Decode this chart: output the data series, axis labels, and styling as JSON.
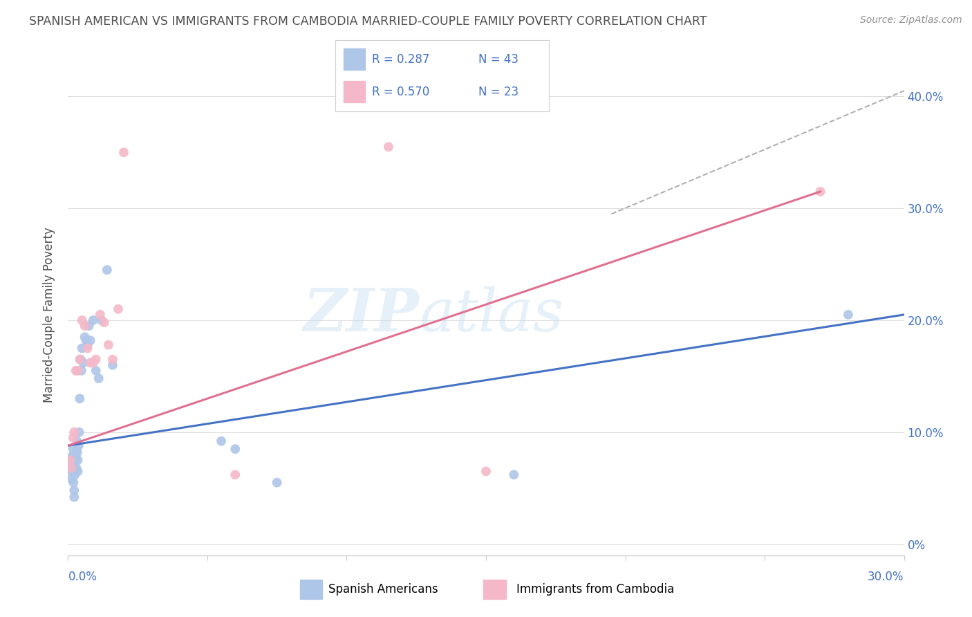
{
  "title": "SPANISH AMERICAN VS IMMIGRANTS FROM CAMBODIA MARRIED-COUPLE FAMILY POVERTY CORRELATION CHART",
  "source": "Source: ZipAtlas.com",
  "ylabel": "Married-Couple Family Poverty",
  "watermark": "ZIPatlas",
  "blue_color": "#aec6e8",
  "pink_color": "#f4b8c8",
  "blue_line_color": "#4472c4",
  "pink_line_color": "#e07090",
  "dashed_line_color": "#b0b0b0",
  "background_color": "#ffffff",
  "grid_color": "#e0e0e0",
  "title_color": "#505050",
  "source_color": "#909090",
  "xmin": 0.0,
  "xmax": 0.3,
  "ymin": -0.01,
  "ymax": 0.42,
  "ytick_vals": [
    0.0,
    0.1,
    0.2,
    0.3,
    0.4
  ],
  "ytick_labels": [
    "0%",
    "10.0%",
    "20.0%",
    "30.0%",
    "40.0%"
  ],
  "blue_line_x": [
    0.0,
    0.3
  ],
  "blue_line_y": [
    0.088,
    0.205
  ],
  "pink_line_x": [
    0.0,
    0.27
  ],
  "pink_line_y": [
    0.088,
    0.315
  ],
  "dashed_line_x": [
    0.195,
    0.3
  ],
  "dashed_line_y": [
    0.295,
    0.405
  ],
  "spanish_x": [
    0.0008,
    0.001,
    0.0012,
    0.0013,
    0.0015,
    0.0016,
    0.0018,
    0.0018,
    0.002,
    0.0022,
    0.0022,
    0.0025,
    0.0025,
    0.0028,
    0.003,
    0.003,
    0.0032,
    0.0033,
    0.0035,
    0.0035,
    0.0038,
    0.004,
    0.0042,
    0.0045,
    0.0048,
    0.005,
    0.0055,
    0.006,
    0.0065,
    0.007,
    0.0075,
    0.008,
    0.009,
    0.01,
    0.011,
    0.012,
    0.014,
    0.016,
    0.055,
    0.06,
    0.075,
    0.16,
    0.28
  ],
  "spanish_y": [
    0.075,
    0.065,
    0.078,
    0.058,
    0.072,
    0.068,
    0.085,
    0.07,
    0.055,
    0.048,
    0.042,
    0.075,
    0.062,
    0.078,
    0.082,
    0.068,
    0.092,
    0.082,
    0.075,
    0.065,
    0.088,
    0.1,
    0.13,
    0.165,
    0.155,
    0.175,
    0.162,
    0.185,
    0.182,
    0.178,
    0.195,
    0.182,
    0.2,
    0.155,
    0.148,
    0.2,
    0.245,
    0.16,
    0.092,
    0.085,
    0.055,
    0.062,
    0.205
  ],
  "cambodia_x": [
    0.0008,
    0.0012,
    0.0018,
    0.0022,
    0.0028,
    0.0035,
    0.0042,
    0.005,
    0.006,
    0.007,
    0.008,
    0.009,
    0.01,
    0.0115,
    0.013,
    0.0145,
    0.016,
    0.018,
    0.02,
    0.06,
    0.115,
    0.15,
    0.27
  ],
  "cambodia_y": [
    0.075,
    0.068,
    0.095,
    0.1,
    0.155,
    0.155,
    0.165,
    0.2,
    0.195,
    0.175,
    0.162,
    0.162,
    0.165,
    0.205,
    0.198,
    0.178,
    0.165,
    0.21,
    0.35,
    0.062,
    0.355,
    0.065,
    0.315
  ]
}
